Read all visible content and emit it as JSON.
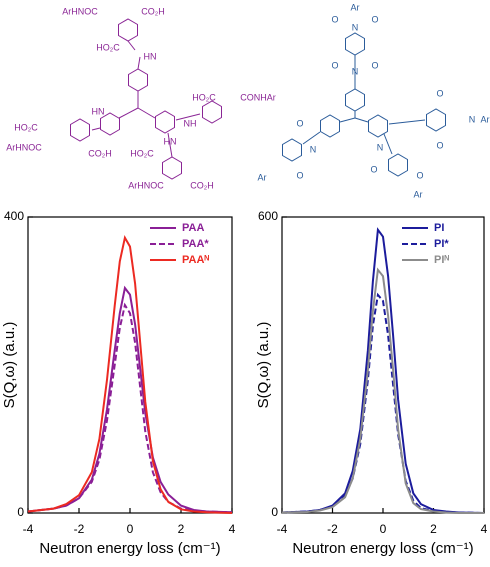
{
  "structures": {
    "left": [
      "ArHNOC",
      "CO₂H",
      "HO₂C",
      "HN",
      "HN",
      "HO₂C",
      "CONHAr",
      "HO₂C",
      "NH",
      "ArHNOC",
      "CO₂H",
      "HO₂C",
      "HN",
      "ArHNOC",
      "CO₂H"
    ],
    "right": [
      "Ar",
      "O",
      "O",
      "N",
      "N",
      "O",
      "O",
      "N",
      "Ar",
      "O",
      "O",
      "N",
      "Ar",
      "O",
      "O",
      "N",
      "Ar",
      "O",
      "O"
    ]
  },
  "chart_data": [
    {
      "type": "line",
      "xlabel": "Neutron energy loss (cm⁻¹)",
      "ylabel": "S(Q,ω) (a.u.)",
      "xlim": [
        -4,
        4
      ],
      "xticks": [
        -4,
        -2,
        0,
        2,
        4
      ],
      "ylim": [
        0,
        400
      ],
      "yticks": [
        0,
        400
      ],
      "legend": "upper right",
      "x": [
        -4,
        -3,
        -2.5,
        -2,
        -1.5,
        -1.2,
        -0.9,
        -0.6,
        -0.4,
        -0.2,
        0,
        0.2,
        0.4,
        0.6,
        0.9,
        1.2,
        1.5,
        2,
        2.5,
        3,
        4
      ],
      "series": [
        {
          "name": "PAA",
          "color": "#8a1f96",
          "style": "solid",
          "values": [
            2,
            6,
            10,
            20,
            45,
            80,
            140,
            220,
            270,
            304,
            295,
            255,
            195,
            135,
            75,
            42,
            25,
            10,
            4,
            2,
            1
          ]
        },
        {
          "name": "PAA*",
          "color": "#8a1f96",
          "style": "dashed",
          "values": [
            2,
            6,
            10,
            20,
            42,
            72,
            125,
            200,
            250,
            281,
            270,
            230,
            170,
            110,
            55,
            28,
            15,
            6,
            3,
            2,
            1
          ]
        },
        {
          "name": "PAAᴺ",
          "color": "#ec2a22",
          "style": "solid",
          "values": [
            2,
            6,
            12,
            24,
            55,
            100,
            180,
            280,
            340,
            372,
            360,
            310,
            230,
            150,
            70,
            32,
            15,
            5,
            2,
            1,
            0
          ]
        }
      ]
    },
    {
      "type": "line",
      "xlabel": "Neutron energy loss (cm⁻¹)",
      "ylabel": "S(Q,ω) (a.u.)",
      "xlim": [
        -4,
        4
      ],
      "xticks": [
        -4,
        -2,
        0,
        2,
        4
      ],
      "ylim": [
        0,
        600
      ],
      "yticks": [
        0,
        600
      ],
      "legend": "upper right",
      "x": [
        -4,
        -3,
        -2.5,
        -2,
        -1.5,
        -1.2,
        -0.9,
        -0.6,
        -0.4,
        -0.2,
        0,
        0.2,
        0.4,
        0.6,
        0.9,
        1.2,
        1.5,
        2,
        2.5,
        3,
        4
      ],
      "series": [
        {
          "name": "PI",
          "color": "#1c1c9c",
          "style": "solid",
          "values": [
            1,
            3,
            6,
            15,
            40,
            85,
            170,
            330,
            470,
            574,
            560,
            480,
            360,
            230,
            100,
            40,
            18,
            6,
            3,
            1,
            0
          ]
        },
        {
          "name": "PI*",
          "color": "#1c1c9c",
          "style": "dashed",
          "values": [
            1,
            3,
            6,
            14,
            35,
            70,
            140,
            270,
            380,
            442,
            430,
            360,
            260,
            160,
            65,
            25,
            10,
            4,
            2,
            1,
            0
          ]
        },
        {
          "name": "PIᴺ",
          "color": "#8c8c8c",
          "style": "solid",
          "values": [
            1,
            2,
            5,
            12,
            32,
            70,
            150,
            290,
            410,
            493,
            480,
            400,
            290,
            170,
            60,
            20,
            8,
            3,
            1,
            0,
            0
          ]
        }
      ]
    }
  ]
}
